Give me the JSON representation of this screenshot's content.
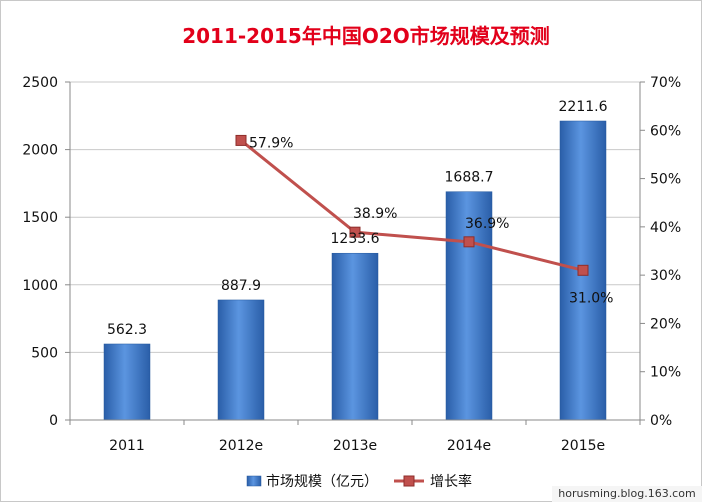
{
  "chart_data": {
    "type": "bar",
    "title": "2011-2015年中国O2O市场规模及预测",
    "categories": [
      "2011",
      "2012e",
      "2013e",
      "2014e",
      "2015e"
    ],
    "series": [
      {
        "name": "市场规模（亿元）",
        "type": "bar",
        "axis": "left",
        "values": [
          562.3,
          887.9,
          1233.6,
          1688.7,
          2211.6
        ],
        "data_labels": [
          "562.3",
          "887.9",
          "1233.6",
          "1688.7",
          "2211.6"
        ],
        "color": "#3f7ccf"
      },
      {
        "name": "增长率",
        "type": "line",
        "axis": "right",
        "values": [
          null,
          57.9,
          38.9,
          36.9,
          31.0
        ],
        "data_labels": [
          null,
          "57.9%",
          "38.9%",
          "36.9%",
          "31.0%"
        ],
        "color": "#c0504d"
      }
    ],
    "y_left": {
      "min": 0,
      "max": 2500,
      "ticks": [
        "0",
        "500",
        "1000",
        "1500",
        "2000",
        "2500"
      ]
    },
    "y_right": {
      "min": 0,
      "max": 70,
      "ticks": [
        "0%",
        "10%",
        "20%",
        "30%",
        "40%",
        "50%",
        "60%",
        "70%"
      ]
    },
    "grid": true,
    "legend_position": "bottom"
  },
  "watermark": "horusming.blog.163.com"
}
